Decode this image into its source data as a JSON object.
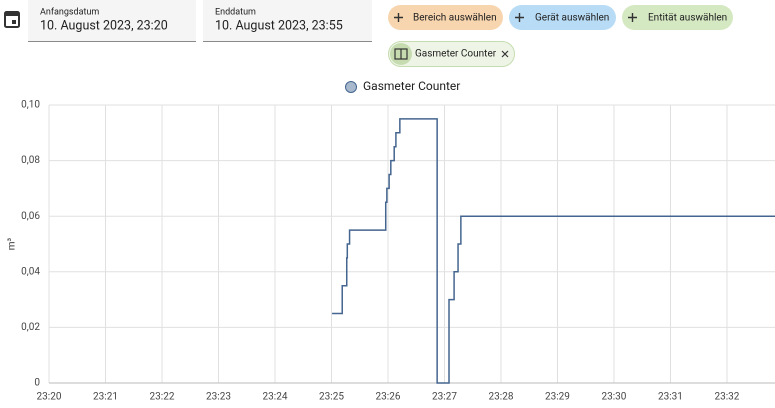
{
  "date_range": {
    "start_label": "Anfangsdatum",
    "start_value": "10. August 2023, 23:20",
    "end_label": "Enddatum",
    "end_value": "10. August 2023, 23:55"
  },
  "target_picker": {
    "chips": [
      "Bereich auswählen",
      "Gerät auswählen",
      "Entität auswählen"
    ],
    "selected": [
      "Gasmeter Counter"
    ]
  },
  "chart_data": {
    "type": "line",
    "step": "after",
    "ylabel": "m³",
    "x": [
      5.01,
      5.19,
      5.27,
      5.28,
      5.32,
      5.96,
      5.98,
      6.02,
      6.05,
      6.11,
      6.14,
      6.21,
      6.87,
      7.08,
      7.17,
      7.24,
      7.29,
      12.85
    ],
    "series": [
      {
        "name": "Gasmeter Counter",
        "color": "#44658f",
        "values": [
          0.025,
          0.035,
          0.045,
          0.05,
          0.055,
          0.065,
          0.07,
          0.075,
          0.08,
          0.085,
          0.09,
          0.095,
          0,
          0.03,
          0.04,
          0.05,
          0.06,
          0.06
        ]
      }
    ],
    "xlim": [
      0,
      12.85
    ],
    "xticks": [
      {
        "value": 0,
        "label": "23:20"
      },
      {
        "value": 1,
        "label": "23:21"
      },
      {
        "value": 2,
        "label": "23:22"
      },
      {
        "value": 3,
        "label": "23:23"
      },
      {
        "value": 4,
        "label": "23:24"
      },
      {
        "value": 5,
        "label": "23:25"
      },
      {
        "value": 6,
        "label": "23:26"
      },
      {
        "value": 7,
        "label": "23:27"
      },
      {
        "value": 8,
        "label": "23:28"
      },
      {
        "value": 9,
        "label": "23:29"
      },
      {
        "value": 10,
        "label": "23:30"
      },
      {
        "value": 11,
        "label": "23:31"
      },
      {
        "value": 12,
        "label": "23:32"
      }
    ],
    "ylim": [
      0,
      0.1
    ],
    "yticks": [
      0,
      {
        "value": 0.02,
        "label": "0,02"
      },
      {
        "value": 0.04,
        "label": "0,04"
      },
      {
        "value": 0.06,
        "label": "0,06"
      },
      {
        "value": 0.08,
        "label": "0,08"
      },
      {
        "value": 0.1,
        "label": "0,10"
      }
    ],
    "grid": true,
    "legend": "top"
  }
}
